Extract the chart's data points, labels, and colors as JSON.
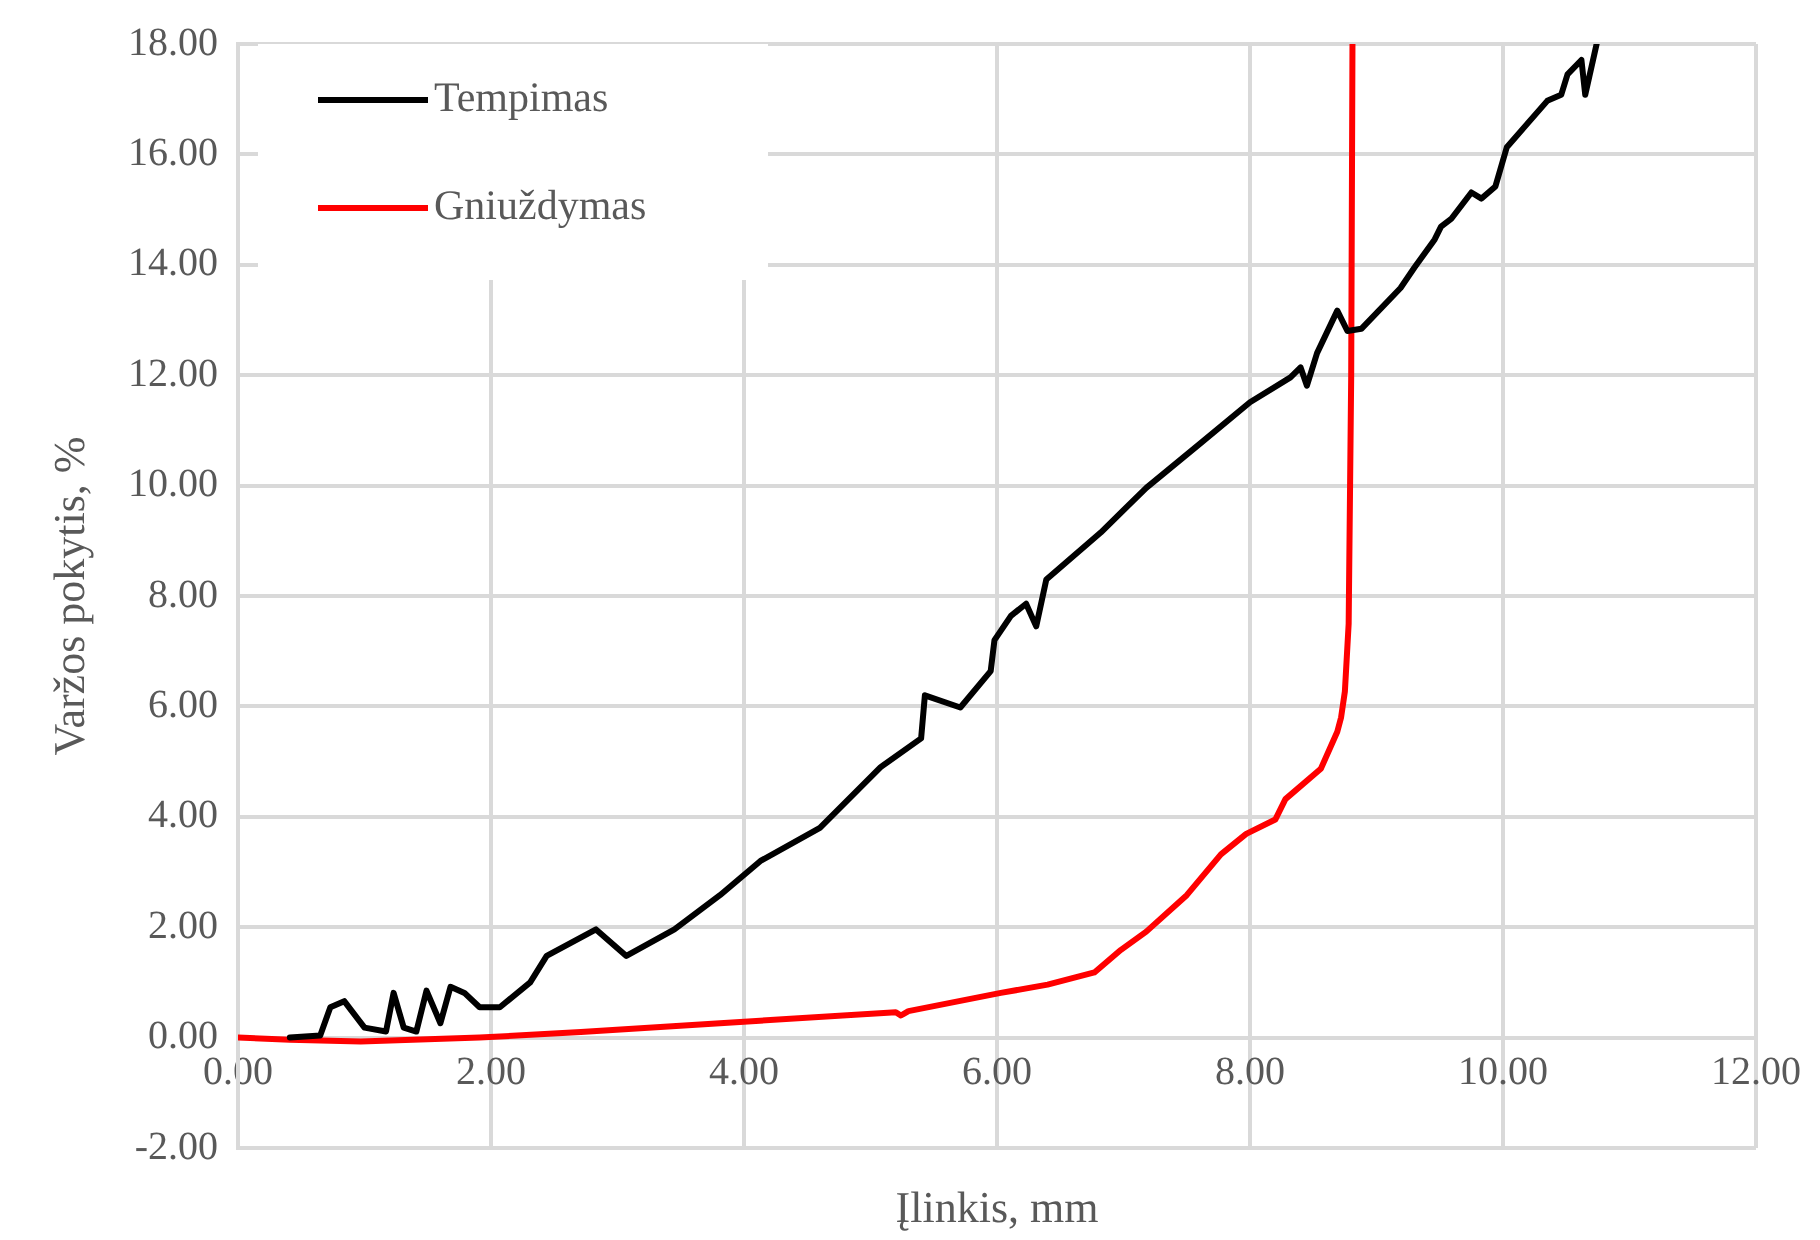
{
  "chart_data": {
    "type": "line",
    "xlabel": "Įlinkis, mm",
    "ylabel": "Varžos pokytis, %",
    "xlim": [
      0,
      12
    ],
    "xticks": [
      {
        "value": 0,
        "label": "0.00"
      },
      {
        "value": 2,
        "label": "2.00"
      },
      {
        "value": 4,
        "label": "4.00"
      },
      {
        "value": 6,
        "label": "6.00"
      },
      {
        "value": 8,
        "label": "8.00"
      },
      {
        "value": 10,
        "label": "10.00"
      },
      {
        "value": 12,
        "label": "12.00"
      }
    ],
    "ylim": [
      -2,
      18
    ],
    "yticks": [
      {
        "value": -2,
        "label": "-2.00"
      },
      {
        "value": 0,
        "label": "0.00"
      },
      {
        "value": 2,
        "label": "2.00"
      },
      {
        "value": 4,
        "label": "4.00"
      },
      {
        "value": 6,
        "label": "6.00"
      },
      {
        "value": 8,
        "label": "8.00"
      },
      {
        "value": 10,
        "label": "10.00"
      },
      {
        "value": 12,
        "label": "12.00"
      },
      {
        "value": 14,
        "label": "14.00"
      },
      {
        "value": 16,
        "label": "16.00"
      },
      {
        "value": 18,
        "label": "18.00"
      }
    ],
    "grid": true,
    "legend": "top left",
    "marker": "none",
    "line_style": "solid",
    "series": [
      {
        "name": "Tempimas",
        "color": "#000000",
        "x": [
          0.41,
          0.65,
          0.73,
          0.84,
          1.0,
          1.17,
          1.23,
          1.31,
          1.41,
          1.49,
          1.6,
          1.68,
          1.79,
          1.91,
          2.07,
          2.31,
          2.44,
          2.83,
          3.07,
          3.45,
          3.81,
          4.13,
          4.6,
          5.08,
          5.4,
          5.43,
          5.71,
          5.95,
          5.98,
          6.11,
          6.23,
          6.31,
          6.39,
          6.82,
          7.18,
          7.61,
          8.0,
          8.32,
          8.4,
          8.45,
          8.53,
          8.69,
          8.77,
          8.88,
          9.19,
          9.3,
          9.46,
          9.51,
          9.59,
          9.75,
          9.83,
          9.94,
          10.03,
          10.35,
          10.46,
          10.51,
          10.62,
          10.65,
          10.74
        ],
        "values": [
          0,
          0.04,
          0.55,
          0.66,
          0.18,
          0.11,
          0.81,
          0.18,
          0.11,
          0.85,
          0.26,
          0.92,
          0.81,
          0.55,
          0.55,
          1.0,
          1.48,
          1.96,
          1.48,
          1.96,
          2.58,
          3.2,
          3.8,
          4.9,
          5.42,
          6.2,
          5.98,
          6.64,
          7.2,
          7.64,
          7.86,
          7.45,
          8.3,
          9.15,
          9.96,
          10.77,
          11.51,
          11.96,
          12.14,
          11.81,
          12.4,
          13.17,
          12.8,
          12.84,
          13.58,
          13.95,
          14.46,
          14.69,
          14.83,
          15.31,
          15.2,
          15.42,
          16.13,
          16.97,
          17.08,
          17.45,
          17.71,
          17.08,
          18.0
        ]
      },
      {
        "name": "Gniuždymas",
        "color": "#ff0000",
        "x": [
          0,
          0.41,
          0.97,
          1.91,
          2.71,
          3.81,
          5.2,
          5.24,
          5.3,
          6.03,
          6.4,
          6.77,
          6.98,
          7.18,
          7.5,
          7.77,
          7.97,
          8.2,
          8.28,
          8.56,
          8.69,
          8.72,
          8.75,
          8.78,
          8.8,
          8.81
        ],
        "values": [
          0,
          -0.04,
          -0.07,
          0,
          0.1,
          0.26,
          0.46,
          0.4,
          0.48,
          0.81,
          0.96,
          1.18,
          1.59,
          1.92,
          2.58,
          3.32,
          3.69,
          3.95,
          4.32,
          4.87,
          5.54,
          5.8,
          6.27,
          7.5,
          12,
          18
        ]
      }
    ]
  }
}
